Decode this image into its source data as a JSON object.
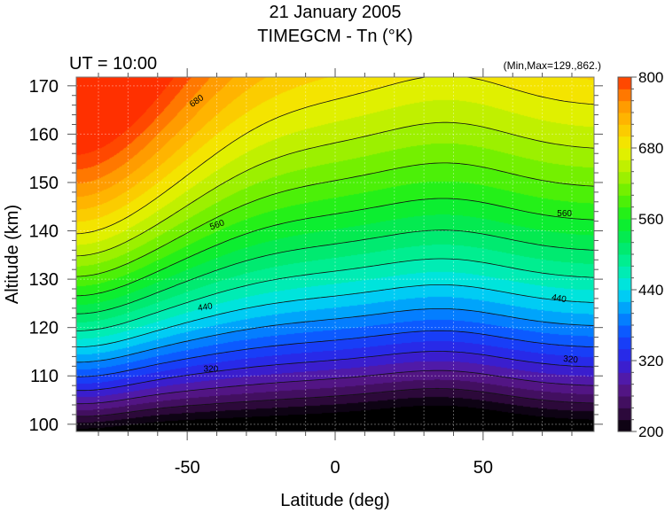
{
  "chart_data": {
    "type": "heatmap",
    "title": "21 January 2005",
    "subtitle": "TIMEGCM - Tn (°K)",
    "time_label": "UT = 10:00",
    "minmax_label": "(Min,Max=129.,862.)",
    "xlabel": "Latitude (deg)",
    "ylabel": "Altitude (km)",
    "xlim": [
      -87.5,
      87.5
    ],
    "ylim": [
      98.5,
      171.8
    ],
    "xticks": [
      -50,
      0,
      50
    ],
    "xtick_labels": [
      "-50",
      "0",
      "50"
    ],
    "yticks": [
      100,
      110,
      120,
      130,
      140,
      150,
      160,
      170
    ],
    "ytick_labels": [
      "100",
      "110",
      "120",
      "130",
      "140",
      "150",
      "160",
      "170"
    ],
    "grid": true,
    "contour_levels": [
      240,
      280,
      320,
      360,
      400,
      440,
      480,
      520,
      560,
      600,
      640,
      680
    ],
    "contour_labels": [
      {
        "text": "680",
        "lat": -47,
        "alt": 167,
        "angle": -35
      },
      {
        "text": "560",
        "lat": -40,
        "alt": 141.4,
        "angle": -20
      },
      {
        "text": "560",
        "lat": 77.5,
        "alt": 143.8,
        "angle": 0
      },
      {
        "text": "440",
        "lat": -44,
        "alt": 124.4,
        "angle": -10
      },
      {
        "text": "440",
        "lat": 75.7,
        "alt": 126.2,
        "angle": 10
      },
      {
        "text": "320",
        "lat": -42,
        "alt": 111.6,
        "angle": 0
      },
      {
        "text": "320",
        "lat": 79.6,
        "alt": 113.6,
        "angle": 5
      }
    ],
    "colorbar": {
      "min": 200,
      "max": 800,
      "ticks": [
        200,
        320,
        440,
        560,
        680,
        800
      ],
      "tick_labels": [
        "200",
        "320",
        "440",
        "560",
        "680",
        "800"
      ],
      "placement": "right"
    },
    "colormap": [
      [
        200,
        "#000000"
      ],
      [
        240,
        "#3a0c4e"
      ],
      [
        280,
        "#5a1896"
      ],
      [
        320,
        "#3020e0"
      ],
      [
        360,
        "#1048ff"
      ],
      [
        400,
        "#0090ff"
      ],
      [
        440,
        "#00e0f0"
      ],
      [
        480,
        "#00f0a0"
      ],
      [
        520,
        "#00e860"
      ],
      [
        560,
        "#10f020"
      ],
      [
        600,
        "#60f000"
      ],
      [
        640,
        "#b0f000"
      ],
      [
        680,
        "#f0f000"
      ],
      [
        720,
        "#ffc000"
      ],
      [
        760,
        "#ff9000"
      ],
      [
        800,
        "#ff3000"
      ]
    ]
  }
}
